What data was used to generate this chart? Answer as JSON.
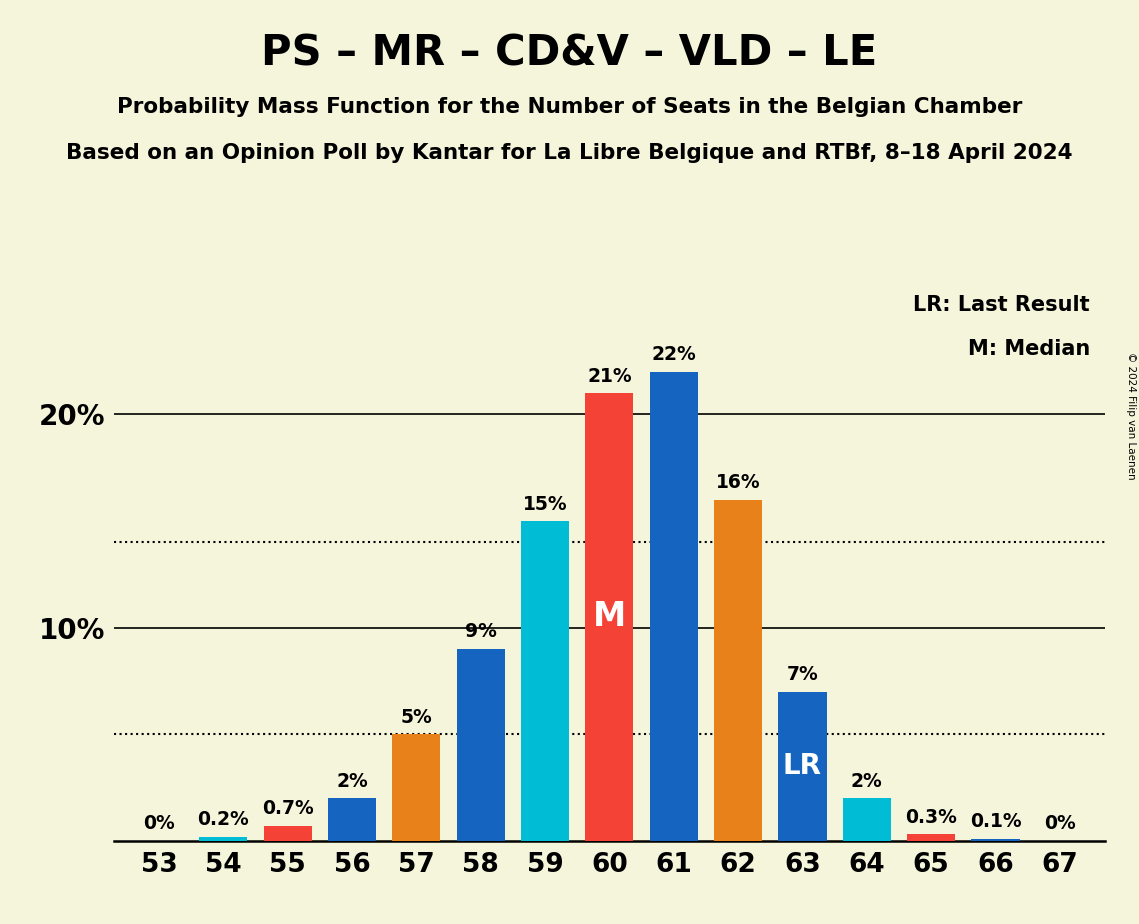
{
  "title": "PS – MR – CD&V – VLD – LE",
  "subtitle1": "Probability Mass Function for the Number of Seats in the Belgian Chamber",
  "subtitle2": "Based on an Opinion Poll by Kantar for La Libre Belgique and RTBf, 8–18 April 2024",
  "copyright": "© 2024 Filip van Laenen",
  "seats": [
    53,
    54,
    55,
    56,
    57,
    58,
    59,
    60,
    61,
    62,
    63,
    64,
    65,
    66,
    67
  ],
  "probabilities": [
    0.0,
    0.2,
    0.7,
    2.0,
    5.0,
    9.0,
    15.0,
    21.0,
    22.0,
    16.0,
    7.0,
    2.0,
    0.3,
    0.1,
    0.0
  ],
  "bar_colors": [
    "#1565C0",
    "#00BCD4",
    "#F44336",
    "#1565C0",
    "#E8811A",
    "#1565C0",
    "#00BCD4",
    "#F44336",
    "#1565C0",
    "#E8811A",
    "#1565C0",
    "#00BCD4",
    "#F44336",
    "#1565C0",
    "#1565C0"
  ],
  "median_seat": 60,
  "lr_seat": 63,
  "legend_lr": "LR: Last Result",
  "legend_m": "M: Median",
  "ylabel_ticks": [
    10,
    20
  ],
  "dotted_lines": [
    5.0,
    14.0
  ],
  "background_color": "#F5F5DC",
  "ylim": [
    0,
    26
  ],
  "bar_width": 0.75
}
